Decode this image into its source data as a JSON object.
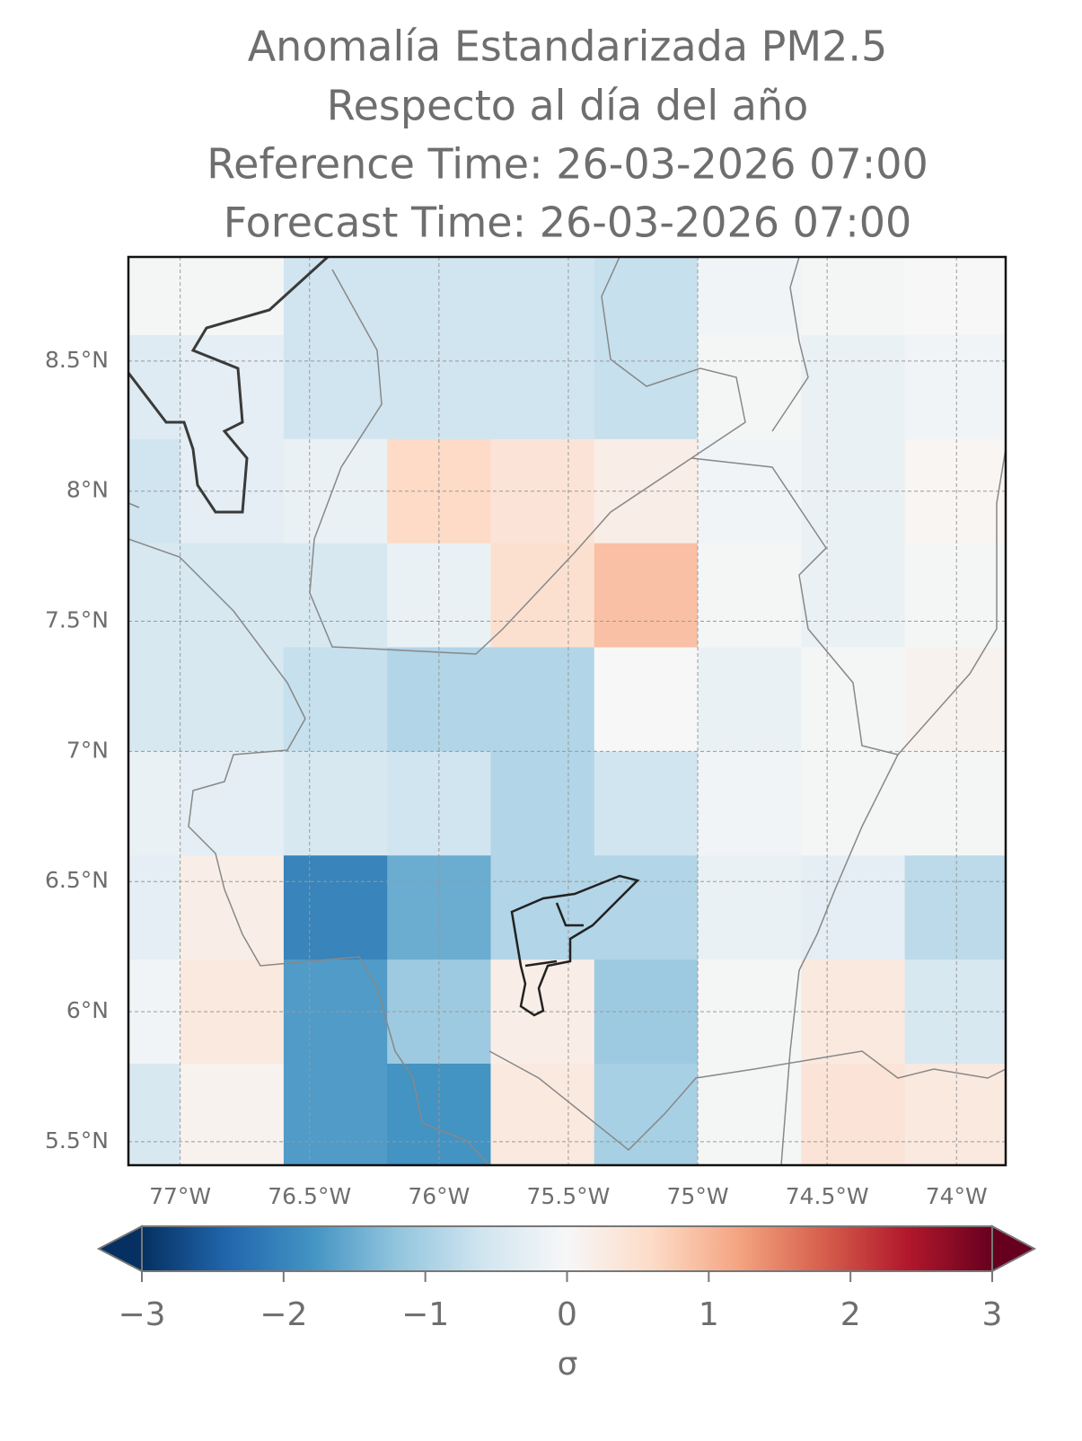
{
  "chart_data": {
    "type": "heatmap",
    "title": [
      "Anomalía Estandarizada PM2.5",
      "Respecto al día del año",
      "Reference Time: 26-03-2026 07:00",
      "Forecast Time: 26-03-2026 07:00"
    ],
    "x": [
      -77.2,
      -76.8,
      -76.4,
      -76.0,
      -75.6,
      -75.2,
      -74.8,
      -74.4,
      -74.0
    ],
    "y": [
      8.8,
      8.4,
      8.0,
      7.6,
      7.2,
      6.8,
      6.4,
      6.0,
      5.6
    ],
    "z": [
      [
        -0.05,
        -0.05,
        -0.6,
        -0.6,
        -0.6,
        -0.7,
        -0.1,
        -0.05,
        0.0
      ],
      [
        -0.4,
        -0.3,
        -0.6,
        -0.6,
        -0.6,
        -0.7,
        -0.05,
        -0.2,
        -0.1
      ],
      [
        -0.6,
        -0.3,
        -0.2,
        0.6,
        0.4,
        0.2,
        -0.1,
        -0.2,
        0.05
      ],
      [
        -0.5,
        -0.5,
        -0.5,
        -0.2,
        0.5,
        0.9,
        -0.05,
        -0.2,
        -0.05
      ],
      [
        -0.5,
        -0.5,
        -0.7,
        -0.9,
        -0.9,
        0.0,
        -0.2,
        -0.05,
        0.1
      ],
      [
        -0.2,
        -0.3,
        -0.5,
        -0.6,
        -0.9,
        -0.6,
        -0.1,
        -0.05,
        -0.05
      ],
      [
        -0.3,
        0.2,
        -2.0,
        -1.5,
        -0.9,
        -0.9,
        -0.2,
        -0.3,
        -0.8
      ],
      [
        -0.1,
        0.3,
        -1.7,
        -1.1,
        0.2,
        -1.1,
        -0.05,
        0.3,
        -0.5
      ],
      [
        -0.5,
        0.1,
        -1.7,
        -1.8,
        0.3,
        -1.0,
        -0.05,
        0.4,
        0.3
      ]
    ],
    "xlim": [
      -77.2,
      -73.81
    ],
    "ylim": [
      5.41,
      8.9
    ],
    "xticks": [
      {
        "value": -77,
        "label": "77°W"
      },
      {
        "value": -76.5,
        "label": "76.5°W"
      },
      {
        "value": -76,
        "label": "76°W"
      },
      {
        "value": -75.5,
        "label": "75.5°W"
      },
      {
        "value": -75,
        "label": "75°W"
      },
      {
        "value": -74.5,
        "label": "74.5°W"
      },
      {
        "value": -74,
        "label": "74°W"
      }
    ],
    "yticks": [
      {
        "value": 5.5,
        "label": "5.5°N"
      },
      {
        "value": 6,
        "label": "6°N"
      },
      {
        "value": 6.5,
        "label": "6.5°N"
      },
      {
        "value": 7,
        "label": "7°N"
      },
      {
        "value": 7.5,
        "label": "7.5°N"
      },
      {
        "value": 8,
        "label": "8°N"
      },
      {
        "value": 8.5,
        "label": "8.5°N"
      }
    ],
    "grid": true,
    "colormap": "RdBu_r",
    "colorbar": {
      "label": "σ",
      "lim": [
        -3,
        3
      ],
      "extend": "both",
      "ticks": [
        {
          "value": -3,
          "label": "−3"
        },
        {
          "value": -2,
          "label": "−2"
        },
        {
          "value": -1,
          "label": "−1"
        },
        0,
        1,
        2,
        3
      ]
    }
  }
}
